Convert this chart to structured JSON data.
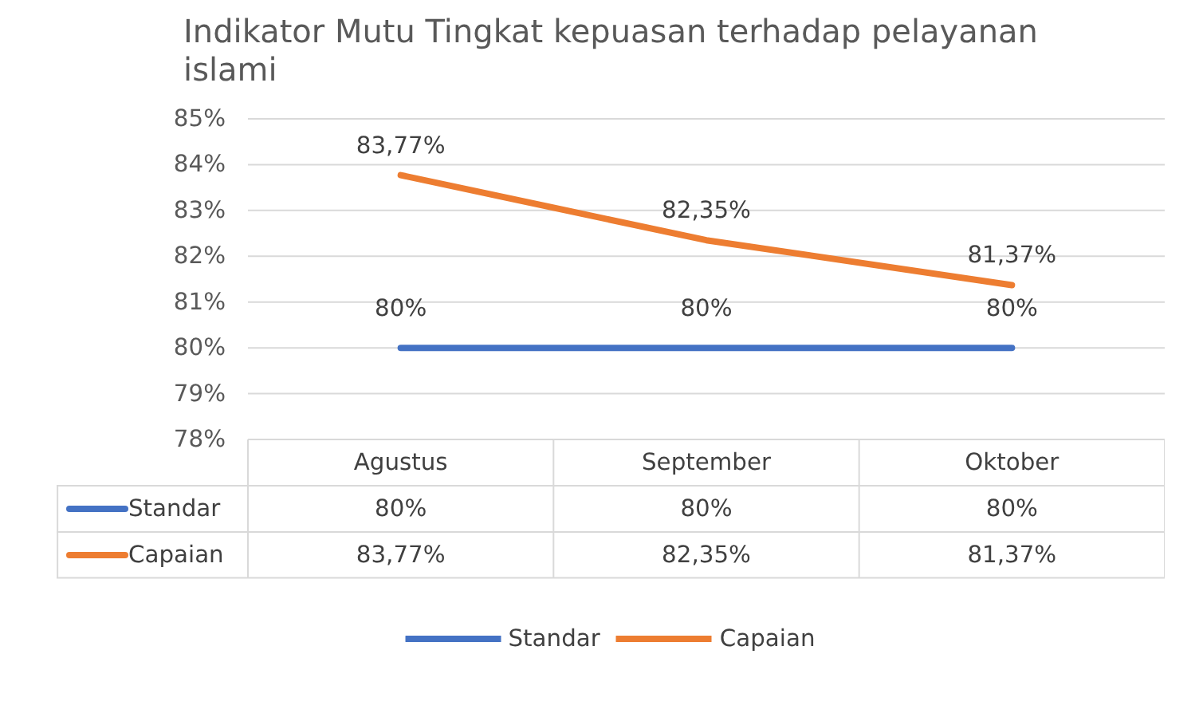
{
  "chart_data": {
    "type": "line",
    "title": "Indikator Mutu Tingkat kepuasan terhadap pelayanan islami",
    "categories": [
      "Agustus",
      "September",
      "Oktober"
    ],
    "series": [
      {
        "name": "Standar",
        "color": "#4472c4",
        "values": [
          80,
          80,
          80
        ],
        "value_labels": [
          "80%",
          "80%",
          "80%"
        ]
      },
      {
        "name": "Capaian",
        "color": "#ed7d31",
        "values": [
          83.77,
          82.35,
          81.37
        ],
        "value_labels": [
          "83,77%",
          "82,35%",
          "81,37%"
        ]
      }
    ],
    "ylim": [
      78,
      85
    ],
    "yticks": [
      {
        "value": 78,
        "label": "78%"
      },
      {
        "value": 79,
        "label": "79%"
      },
      {
        "value": 80,
        "label": "80%"
      },
      {
        "value": 81,
        "label": "81%"
      },
      {
        "value": 82,
        "label": "82%"
      },
      {
        "value": 83,
        "label": "83%"
      },
      {
        "value": 84,
        "label": "84%"
      },
      {
        "value": 85,
        "label": "85%"
      }
    ],
    "grid": "y",
    "legend": "bottom"
  }
}
